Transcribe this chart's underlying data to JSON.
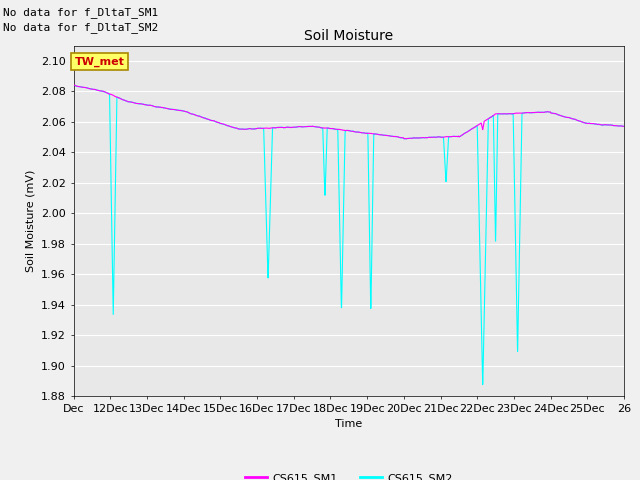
{
  "title": "Soil Moisture",
  "ylabel": "Soil Moisture (mV)",
  "xlabel": "Time",
  "ylim": [
    1.88,
    2.11
  ],
  "ytick_vals": [
    1.88,
    1.9,
    1.92,
    1.94,
    1.96,
    1.98,
    2.0,
    2.02,
    2.04,
    2.06,
    2.08,
    2.1
  ],
  "xtick_labels": [
    "Dec",
    "12Dec",
    "13Dec",
    "14Dec",
    "15Dec",
    "16Dec",
    "17Dec",
    "18Dec",
    "19Dec",
    "20Dec",
    "21Dec",
    "22Dec",
    "23Dec",
    "24Dec",
    "25Dec",
    "26"
  ],
  "color_sm1": "#ff00ff",
  "color_sm2": "#00ffff",
  "annotation1": "No data for f_DltaT_SM1",
  "annotation2": "No data for f_DltaT_SM2",
  "tw_met_label": "TW_met",
  "legend_label1": "CS615_SM1",
  "legend_label2": "CS615_SM2",
  "bg_color": "#e8e8e8",
  "grid_color": "#ffffff",
  "fig_bg_color": "#f0f0f0",
  "title_fontsize": 10,
  "label_fontsize": 8,
  "tick_fontsize": 8,
  "annot_fontsize": 8
}
